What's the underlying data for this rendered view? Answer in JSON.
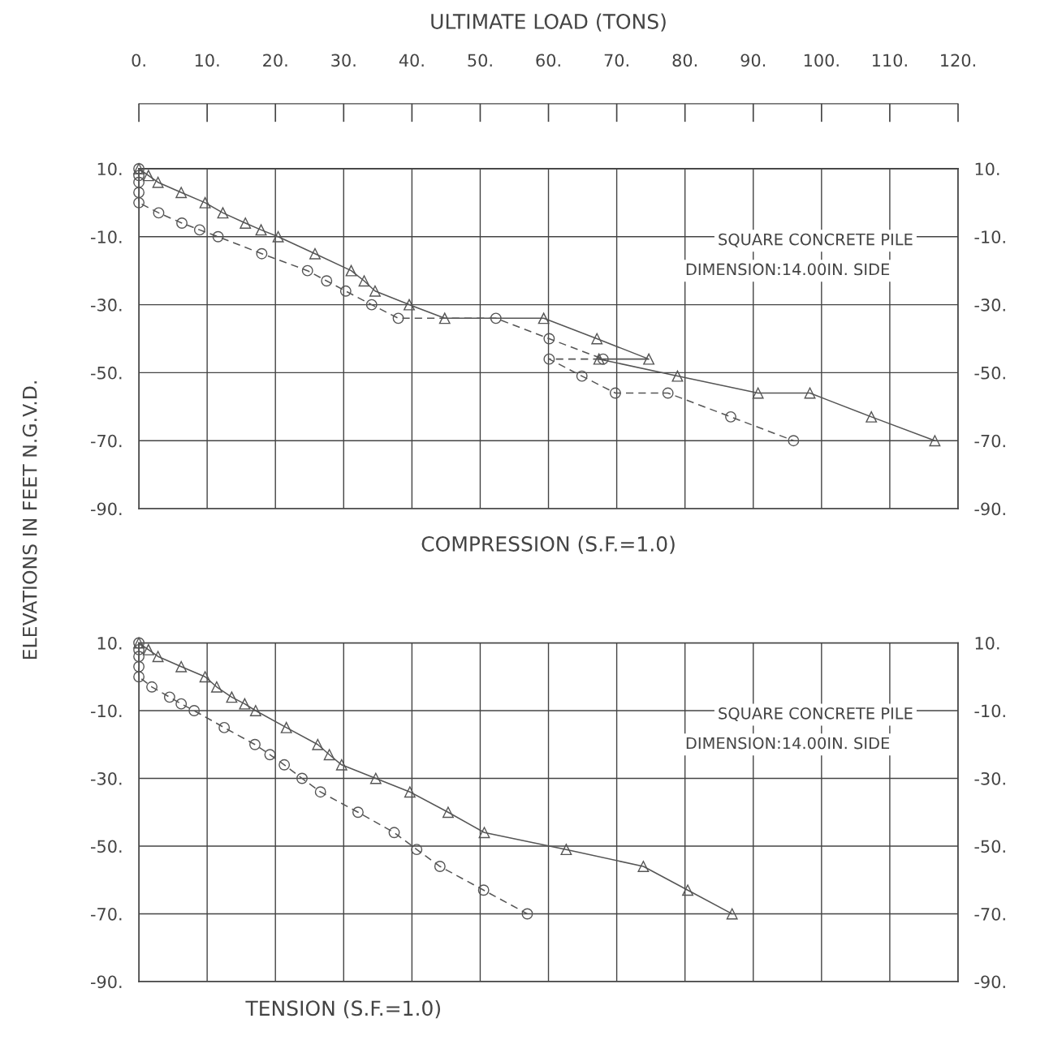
{
  "chart_data": [
    {
      "type": "line",
      "title": "COMPRESSION (S.F.=1.0)",
      "xlabel": "ULTIMATE LOAD (TONS)",
      "ylabel": "ELEVATIONS IN FEET N.G.V.D.",
      "annotations": [
        "SQUARE CONCRETE PILE",
        "DIMENSION:14.00IN. SIDE"
      ],
      "xlim": [
        0,
        120
      ],
      "xticks": [
        {
          "value": 0,
          "label": "0."
        },
        {
          "value": 10,
          "label": "10."
        },
        {
          "value": 20,
          "label": "20."
        },
        {
          "value": 30,
          "label": "30."
        },
        {
          "value": 40,
          "label": "40."
        },
        {
          "value": 50,
          "label": "50."
        },
        {
          "value": 60,
          "label": "60."
        },
        {
          "value": 70,
          "label": "70."
        },
        {
          "value": 80,
          "label": "80."
        },
        {
          "value": 90,
          "label": "90."
        },
        {
          "value": 100,
          "label": "100."
        },
        {
          "value": 110,
          "label": "110."
        },
        {
          "value": 120,
          "label": "120."
        }
      ],
      "ylim": [
        -90,
        10
      ],
      "yticks": [
        {
          "value": 10,
          "label": "10."
        },
        {
          "value": -10,
          "label": "-10."
        },
        {
          "value": -30,
          "label": "-30."
        },
        {
          "value": -50,
          "label": "-50."
        },
        {
          "value": -70,
          "label": "-70."
        },
        {
          "value": -90,
          "label": "-90."
        }
      ],
      "y2lim": [
        -90,
        10
      ],
      "y2ticks": [
        {
          "value": 10,
          "label": "10."
        },
        {
          "value": -10,
          "label": "-10."
        },
        {
          "value": -30,
          "label": "-30."
        },
        {
          "value": -50,
          "label": "-50."
        },
        {
          "value": -70,
          "label": "-70."
        },
        {
          "value": -90,
          "label": "-90."
        }
      ],
      "grid": true,
      "series": [
        {
          "color": "#555555",
          "marker": "triangle",
          "line_style": "solid",
          "x": [
            0,
            1.4,
            2.8,
            6.2,
            9.7,
            12.3,
            15.6,
            17.9,
            20.4,
            25.8,
            31.1,
            33.0,
            34.6,
            39.6,
            44.8,
            59.3,
            67.1,
            74.7,
            67.4,
            78.9,
            90.7,
            98.3,
            107.3,
            116.6
          ],
          "values": [
            10,
            8,
            6,
            3,
            0,
            -3,
            -6,
            -8,
            -10,
            -15,
            -20,
            -23,
            -26,
            -30,
            -34,
            -34,
            -40,
            -46,
            -46,
            -51,
            -56,
            -56,
            -63,
            -70
          ]
        },
        {
          "color": "#555555",
          "marker": "circle",
          "line_style": "dashed",
          "x": [
            0,
            0,
            0,
            0,
            0,
            2.9,
            6.3,
            8.9,
            11.6,
            18.0,
            24.7,
            27.5,
            30.3,
            34.1,
            38.0,
            52.3,
            60.1,
            68.0,
            60.1,
            64.9,
            69.8,
            77.5,
            86.7,
            95.9
          ],
          "values": [
            10,
            8,
            6,
            3,
            0,
            -3,
            -6,
            -8,
            -10,
            -15,
            -20,
            -23,
            -26,
            -30,
            -34,
            -34,
            -40,
            -46,
            -46,
            -51,
            -56,
            -56,
            -63,
            -70
          ]
        }
      ]
    },
    {
      "type": "line",
      "title": "TENSION (S.F.=1.0)",
      "annotations": [
        "SQUARE CONCRETE PILE",
        "DIMENSION:14.00IN. SIDE"
      ],
      "tick_labels": "y",
      "xlim": [
        0,
        120
      ],
      "xticks": [
        0,
        10,
        20,
        30,
        40,
        50,
        60,
        70,
        80,
        90,
        100,
        110,
        120
      ],
      "ylim": [
        -90,
        10
      ],
      "yticks": [
        {
          "value": 10,
          "label": "10."
        },
        {
          "value": -10,
          "label": "-10."
        },
        {
          "value": -30,
          "label": "-30."
        },
        {
          "value": -50,
          "label": "-50."
        },
        {
          "value": -70,
          "label": "-70."
        },
        {
          "value": -90,
          "label": "-90."
        }
      ],
      "y2lim": [
        -90,
        10
      ],
      "y2ticks": [
        {
          "value": 10,
          "label": "10."
        },
        {
          "value": -10,
          "label": "-10."
        },
        {
          "value": -30,
          "label": "-30."
        },
        {
          "value": -50,
          "label": "-50."
        },
        {
          "value": -70,
          "label": "-70."
        },
        {
          "value": -90,
          "label": "-90."
        }
      ],
      "grid": true,
      "series": [
        {
          "color": "#555555",
          "marker": "triangle",
          "line_style": "solid",
          "x": [
            0,
            1.4,
            2.8,
            6.2,
            9.7,
            11.4,
            13.6,
            15.5,
            17.1,
            21.6,
            26.2,
            27.9,
            29.7,
            34.7,
            39.7,
            45.3,
            50.6,
            62.6,
            73.9,
            80.4,
            86.9
          ],
          "values": [
            10,
            8,
            6,
            3,
            0,
            -3,
            -6,
            -8,
            -10,
            -15,
            -20,
            -23,
            -26,
            -30,
            -34,
            -40,
            -46,
            -51,
            -56,
            -63,
            -70
          ]
        },
        {
          "color": "#555555",
          "marker": "circle",
          "line_style": "dashed",
          "x": [
            0,
            0,
            0,
            0,
            0,
            1.9,
            4.5,
            6.2,
            8.1,
            12.5,
            17.0,
            19.2,
            21.3,
            23.9,
            26.6,
            32.1,
            37.4,
            40.7,
            44.1,
            50.5,
            56.9
          ],
          "values": [
            10,
            8,
            6,
            3,
            0,
            -3,
            -6,
            -8,
            -10,
            -15,
            -20,
            -23,
            -26,
            -30,
            -34,
            -40,
            -46,
            -51,
            -56,
            -63,
            -70
          ]
        }
      ]
    }
  ]
}
